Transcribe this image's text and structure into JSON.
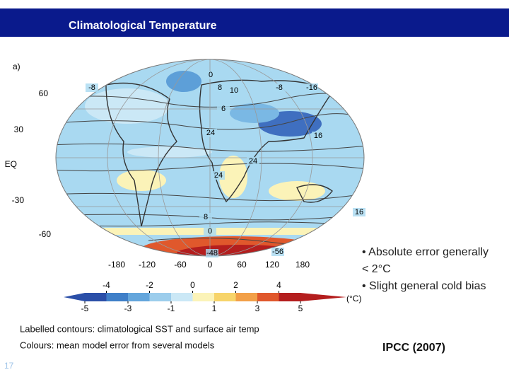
{
  "header": {
    "title": "Climatological Temperature"
  },
  "figure": {
    "panel_label": "a)",
    "lat_labels": [
      "60",
      "30",
      "EQ",
      "-30",
      "-60"
    ],
    "lon_labels": [
      "-180",
      "-120",
      "-60",
      "0",
      "60",
      "120",
      "180"
    ],
    "contour_labels": [
      "0",
      "-8",
      "8",
      "10",
      "-8",
      "-16",
      "6",
      "24",
      "16",
      "24",
      "24",
      "8",
      "0",
      "16",
      "-48",
      "-56"
    ],
    "colorbar": {
      "range": [
        -5,
        5
      ],
      "ticks_top": [
        -4,
        -2,
        0,
        2,
        4
      ],
      "ticks_bottom": [
        -5,
        -3,
        -1,
        1,
        3,
        5
      ],
      "colors": [
        "#2b4fa8",
        "#3f7fc8",
        "#64a6dc",
        "#9ccdec",
        "#cbe8f6",
        "#fbf3b8",
        "#f7d46a",
        "#f2a048",
        "#e0582c",
        "#b41e1e"
      ],
      "unit": "(°C)"
    }
  },
  "bullets": [
    "• Absolute error generally",
    "< 2°C",
    "• Slight general cold bias"
  ],
  "caption": [
    "Labelled contours: climatological SST and surface air temp",
    "Colours: mean model error from several models"
  ],
  "citation": "IPCC (2007)",
  "slide_number": "17"
}
